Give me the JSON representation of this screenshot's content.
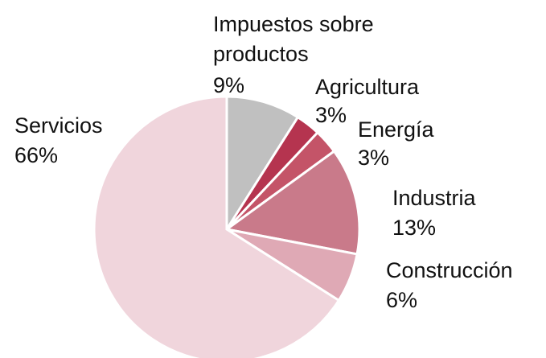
{
  "chart_data": {
    "type": "pie",
    "categories": [
      "Impuestos sobre productos",
      "Agricultura",
      "Energía",
      "Industria",
      "Construcción",
      "Servicios"
    ],
    "values": [
      9,
      3,
      3,
      13,
      6,
      66
    ],
    "value_labels": [
      "9%",
      "3%",
      "3%",
      "13%",
      "6%",
      "66%"
    ],
    "colors": [
      "#c0c0c0",
      "#b5344f",
      "#c45468",
      "#c97a8a",
      "#dfa9b5",
      "#f0d5dc"
    ]
  }
}
